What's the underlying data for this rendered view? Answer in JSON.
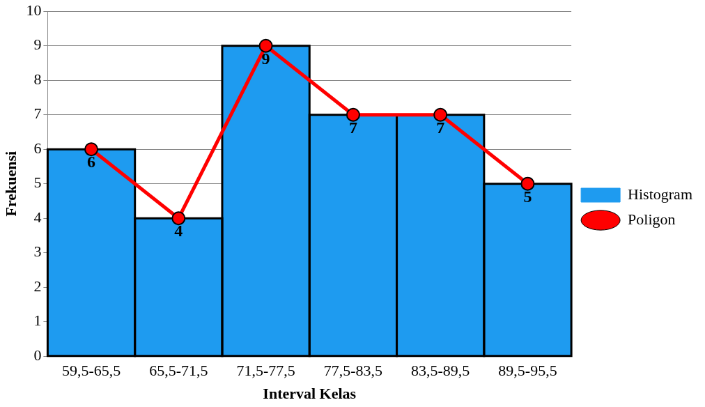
{
  "chart_data": {
    "type": "bar",
    "xlabel": "Interval Kelas",
    "ylabel": "Frekuensi",
    "categories": [
      "59,5-65,5",
      "65,5-71,5",
      "71,5-77,5",
      "77,5-83,5",
      "83,5-89,5",
      "89,5-95,5"
    ],
    "series": [
      {
        "name": "Histogram",
        "color": "#1e9bf0",
        "values": [
          6,
          4,
          9,
          7,
          7,
          5
        ]
      },
      {
        "name": "Poligon",
        "type": "line",
        "color": "#ff0000",
        "values": [
          6,
          4,
          9,
          7,
          7,
          5
        ],
        "value_labels": [
          "6",
          "4",
          "9",
          "7",
          "7",
          "5"
        ]
      }
    ],
    "ylim": [
      0,
      10
    ],
    "yticks": [
      0,
      1,
      2,
      3,
      4,
      5,
      6,
      7,
      8,
      9,
      10
    ],
    "grid": "y",
    "legend": "right",
    "marker": "circle",
    "line_style": "solid"
  }
}
